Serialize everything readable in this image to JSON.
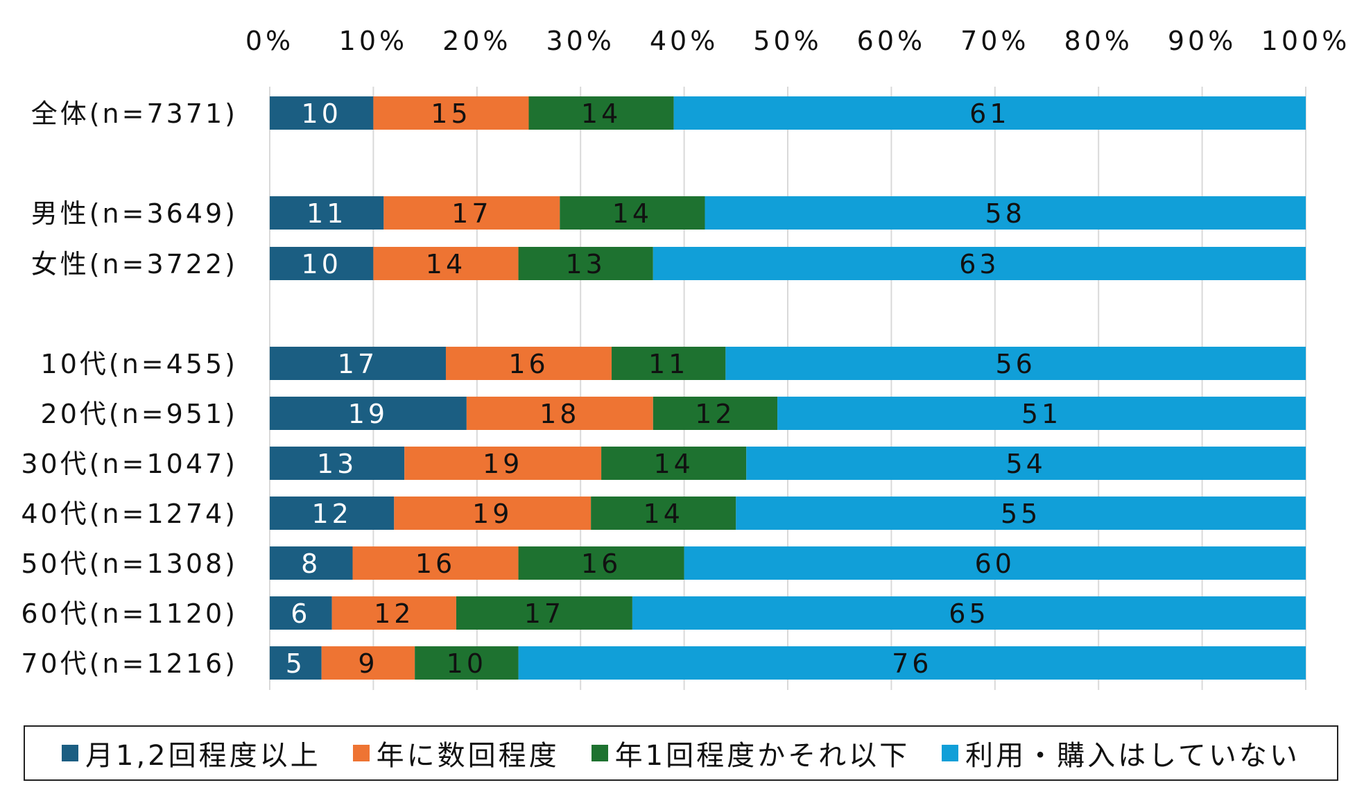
{
  "chart_data": {
    "type": "bar",
    "orientation": "horizontal",
    "stacked": true,
    "categories": [
      "全体(n=7371)",
      "男性(n=3649)",
      "女性(n=3722)",
      "10代(n=455)",
      "20代(n=951)",
      "30代(n=1047)",
      "40代(n=1274)",
      "50代(n=1308)",
      "60代(n=1120)",
      "70代(n=1216)"
    ],
    "series": [
      {
        "name": "月1,2回程度以上",
        "color": "#1b5e82",
        "values": [
          10,
          11,
          10,
          17,
          19,
          13,
          12,
          8,
          6,
          5
        ]
      },
      {
        "name": "年に数回程度",
        "color": "#ee7433",
        "values": [
          15,
          17,
          14,
          16,
          18,
          19,
          19,
          16,
          12,
          9
        ]
      },
      {
        "name": "年1回程度かそれ以下",
        "color": "#1e7230",
        "values": [
          14,
          14,
          13,
          11,
          12,
          14,
          14,
          16,
          17,
          10
        ]
      },
      {
        "name": "利用・購入はしていない",
        "color": "#119fd8",
        "values": [
          61,
          58,
          63,
          56,
          51,
          54,
          55,
          60,
          65,
          76
        ]
      }
    ],
    "xlim": [
      0,
      100
    ],
    "x_ticks": [
      "0%",
      "10%",
      "20%",
      "30%",
      "40%",
      "50%",
      "60%",
      "70%",
      "80%",
      "90%",
      "100%"
    ],
    "grid": true,
    "legend_position": "bottom",
    "title": "",
    "xlabel": "",
    "ylabel": ""
  }
}
